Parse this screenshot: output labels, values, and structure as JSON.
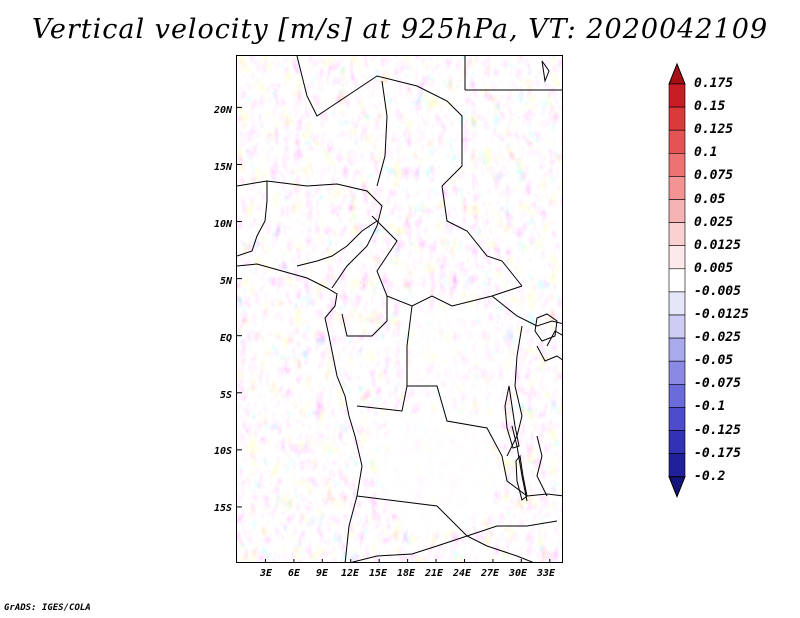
{
  "title": "Vertical velocity [m/s] at 925hPa, VT: 2020042109",
  "map": {
    "lat_labels": [
      "20N",
      "15N",
      "10N",
      "5N",
      "EQ",
      "5S",
      "10S",
      "15S"
    ],
    "lat_values": [
      20,
      15,
      10,
      5,
      0,
      -5,
      -10,
      -15
    ],
    "lon_labels": [
      "3E",
      "6E",
      "9E",
      "12E",
      "15E",
      "18E",
      "21E",
      "24E",
      "27E",
      "30E",
      "33E"
    ],
    "lon_values": [
      3,
      6,
      9,
      12,
      15,
      18,
      21,
      24,
      27,
      30,
      33
    ],
    "lon_range": [
      0,
      34.5
    ],
    "lat_range": [
      -20,
      24.5
    ]
  },
  "colorbar": {
    "levels": [
      "0.175",
      "0.15",
      "0.125",
      "0.1",
      "0.075",
      "0.05",
      "0.025",
      "0.0125",
      "0.005",
      "-0.005",
      "-0.0125",
      "-0.025",
      "-0.05",
      "-0.075",
      "-0.1",
      "-0.125",
      "-0.175",
      "-0.2"
    ],
    "colors": [
      "#a50f15",
      "#c81d25",
      "#db3a3a",
      "#e55454",
      "#ed7373",
      "#f29494",
      "#f6b3b3",
      "#fad0d0",
      "#fde9e9",
      "#ffffff",
      "#e6e6fa",
      "#ccccf5",
      "#a9a9ee",
      "#8a8ae5",
      "#6b6bd9",
      "#4d4dcc",
      "#3232b5",
      "#20209a",
      "#14147a"
    ]
  },
  "credit": "GrADS: IGES/COLA"
}
